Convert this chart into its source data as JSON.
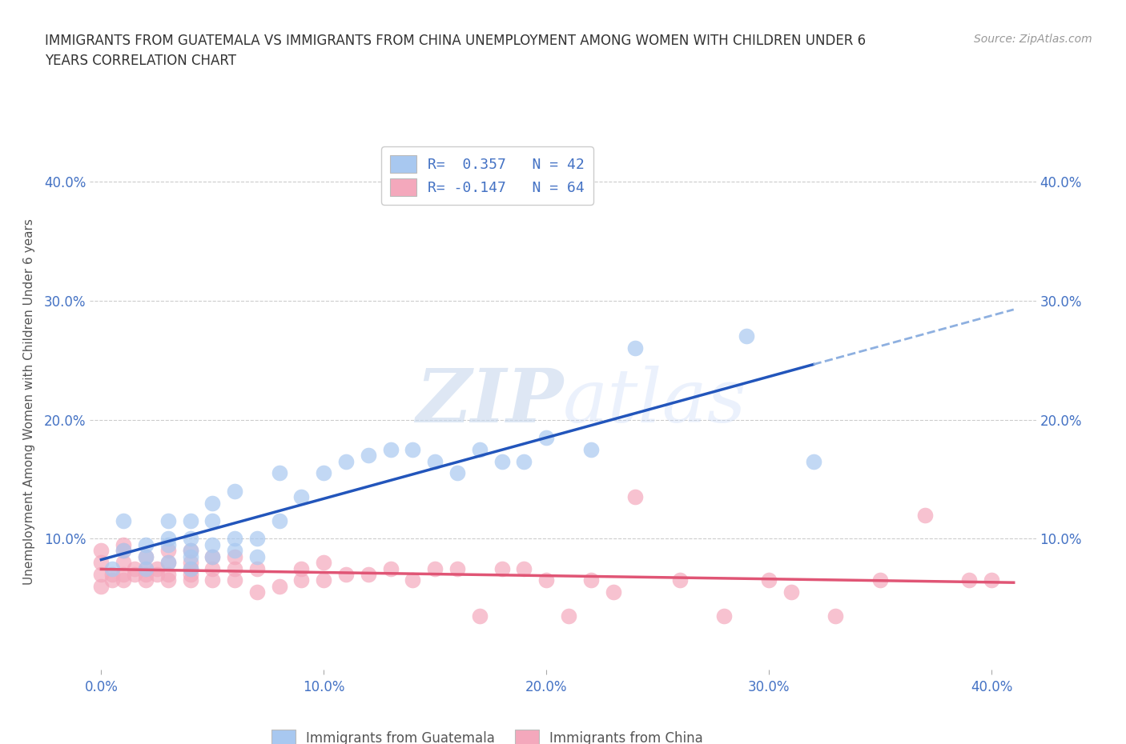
{
  "title_line1": "IMMIGRANTS FROM GUATEMALA VS IMMIGRANTS FROM CHINA UNEMPLOYMENT AMONG WOMEN WITH CHILDREN UNDER 6",
  "title_line2": "YEARS CORRELATION CHART",
  "source": "Source: ZipAtlas.com",
  "ylabel": "Unemployment Among Women with Children Under 6 years",
  "xlim": [
    -0.005,
    0.42
  ],
  "ylim": [
    -0.01,
    0.44
  ],
  "xticks": [
    0.0,
    0.1,
    0.2,
    0.3,
    0.4
  ],
  "yticks": [
    0.1,
    0.2,
    0.3,
    0.4
  ],
  "xticklabels": [
    "0.0%",
    "10.0%",
    "20.0%",
    "30.0%",
    "40.0%"
  ],
  "yticklabels": [
    "10.0%",
    "20.0%",
    "30.0%",
    "40.0%"
  ],
  "legend1_label": "R=  0.357   N = 42",
  "legend2_label": "R= -0.147   N = 64",
  "color_guatemala": "#A8C8F0",
  "color_china": "#F4A8BC",
  "trendline_guatemala": "#2255BB",
  "trendline_china": "#E05575",
  "trendline_dashed": "#8EB0E0",
  "background_color": "#ffffff",
  "watermark": "ZIPatlas",
  "guatemala_x": [
    0.005,
    0.01,
    0.01,
    0.02,
    0.02,
    0.02,
    0.03,
    0.03,
    0.03,
    0.03,
    0.04,
    0.04,
    0.04,
    0.04,
    0.04,
    0.05,
    0.05,
    0.05,
    0.05,
    0.06,
    0.06,
    0.06,
    0.07,
    0.07,
    0.08,
    0.08,
    0.09,
    0.1,
    0.11,
    0.12,
    0.13,
    0.14,
    0.15,
    0.16,
    0.17,
    0.18,
    0.19,
    0.2,
    0.22,
    0.24,
    0.29,
    0.32
  ],
  "guatemala_y": [
    0.075,
    0.09,
    0.115,
    0.075,
    0.085,
    0.095,
    0.08,
    0.095,
    0.1,
    0.115,
    0.075,
    0.085,
    0.09,
    0.1,
    0.115,
    0.085,
    0.095,
    0.115,
    0.13,
    0.09,
    0.1,
    0.14,
    0.085,
    0.1,
    0.115,
    0.155,
    0.135,
    0.155,
    0.165,
    0.17,
    0.175,
    0.175,
    0.165,
    0.155,
    0.175,
    0.165,
    0.165,
    0.185,
    0.175,
    0.26,
    0.27,
    0.165
  ],
  "china_x": [
    0.0,
    0.0,
    0.0,
    0.0,
    0.005,
    0.005,
    0.01,
    0.01,
    0.01,
    0.01,
    0.01,
    0.015,
    0.015,
    0.02,
    0.02,
    0.02,
    0.02,
    0.025,
    0.025,
    0.03,
    0.03,
    0.03,
    0.03,
    0.04,
    0.04,
    0.04,
    0.04,
    0.04,
    0.05,
    0.05,
    0.05,
    0.06,
    0.06,
    0.06,
    0.07,
    0.07,
    0.08,
    0.09,
    0.09,
    0.1,
    0.1,
    0.11,
    0.12,
    0.13,
    0.14,
    0.15,
    0.16,
    0.17,
    0.18,
    0.19,
    0.2,
    0.21,
    0.22,
    0.23,
    0.24,
    0.26,
    0.28,
    0.3,
    0.31,
    0.33,
    0.35,
    0.37,
    0.39,
    0.4
  ],
  "china_y": [
    0.06,
    0.07,
    0.08,
    0.09,
    0.065,
    0.07,
    0.065,
    0.07,
    0.08,
    0.09,
    0.095,
    0.07,
    0.075,
    0.065,
    0.07,
    0.075,
    0.085,
    0.07,
    0.075,
    0.065,
    0.07,
    0.08,
    0.09,
    0.065,
    0.07,
    0.075,
    0.08,
    0.09,
    0.065,
    0.075,
    0.085,
    0.065,
    0.075,
    0.085,
    0.055,
    0.075,
    0.06,
    0.065,
    0.075,
    0.065,
    0.08,
    0.07,
    0.07,
    0.075,
    0.065,
    0.075,
    0.075,
    0.035,
    0.075,
    0.075,
    0.065,
    0.035,
    0.065,
    0.055,
    0.135,
    0.065,
    0.035,
    0.065,
    0.055,
    0.035,
    0.065,
    0.12,
    0.065,
    0.065
  ]
}
